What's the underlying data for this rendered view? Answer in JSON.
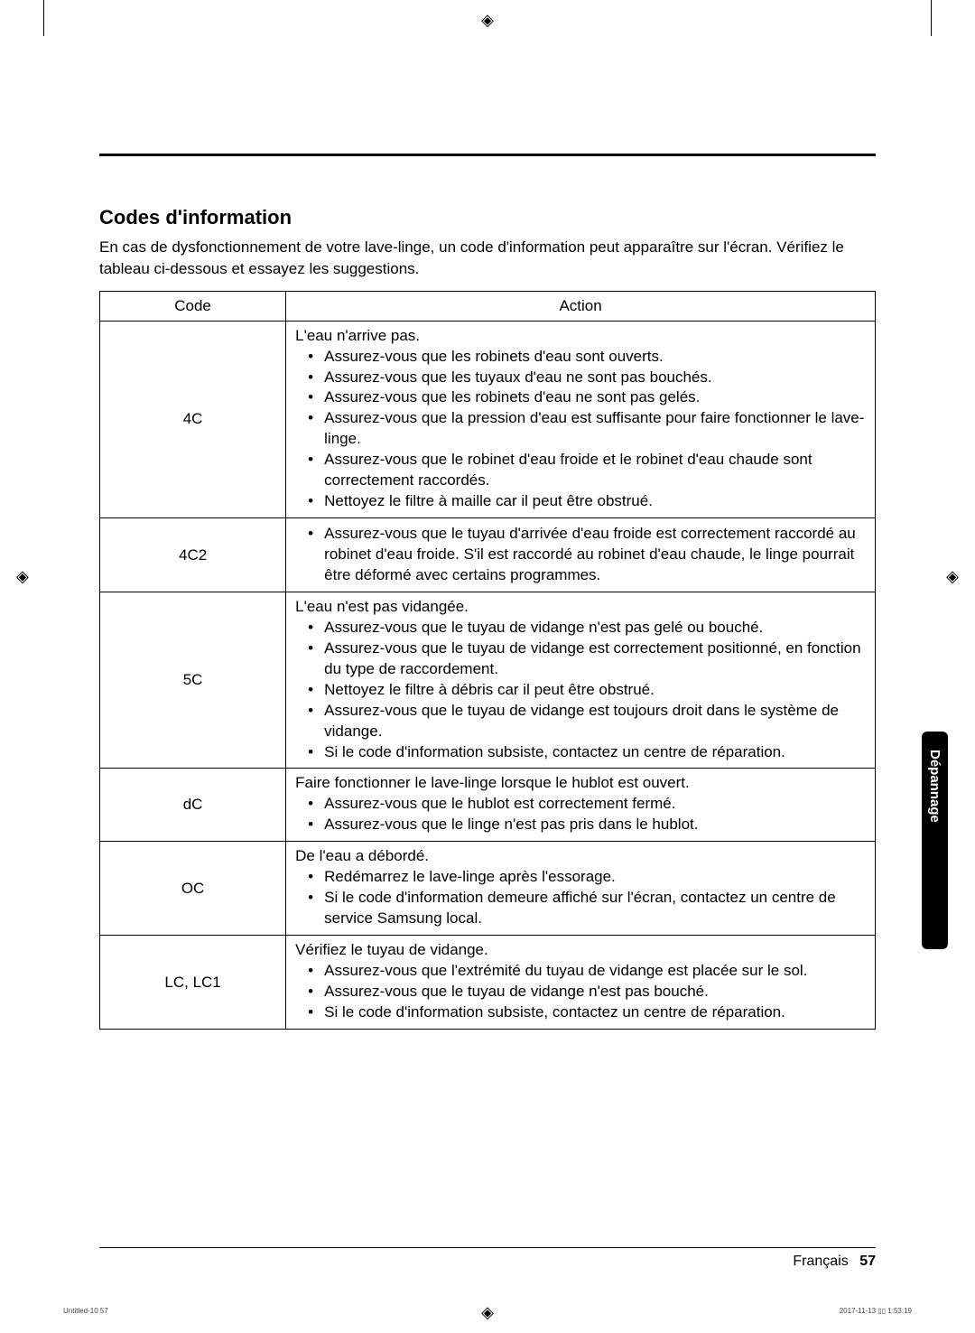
{
  "section_title": "Codes d'information",
  "intro": "En cas de dysfonctionnement de votre lave-linge, un code d'information peut apparaître sur l'écran. Vérifiez le tableau ci-dessous et essayez les suggestions.",
  "table": {
    "headers": {
      "code": "Code",
      "action": "Action"
    },
    "rows": [
      {
        "code": "4C",
        "lead": "L'eau n'arrive pas.",
        "bullets": [
          "Assurez-vous que les robinets d'eau sont ouverts.",
          "Assurez-vous que les tuyaux d'eau ne sont pas bouchés.",
          "Assurez-vous que les robinets d'eau ne sont pas gelés.",
          "Assurez-vous que la pression d'eau est suffisante pour faire fonctionner le lave-linge.",
          "Assurez-vous que le robinet d'eau froide et le robinet d'eau chaude sont correctement raccordés.",
          "Nettoyez le filtre à maille car il peut être obstrué."
        ]
      },
      {
        "code": "4C2",
        "lead": "",
        "bullets": [
          "Assurez-vous que le tuyau d'arrivée d'eau froide est correctement raccordé au robinet d'eau froide. S'il est raccordé au robinet d'eau chaude, le linge pourrait être déformé avec certains programmes."
        ]
      },
      {
        "code": "5C",
        "lead": "L'eau n'est pas vidangée.",
        "bullets": [
          "Assurez-vous que le tuyau de vidange n'est pas gelé ou bouché.",
          "Assurez-vous que le tuyau de vidange est correctement positionné, en fonction du type de raccordement.",
          "Nettoyez le filtre à débris car il peut être obstrué.",
          "Assurez-vous que le tuyau de vidange est toujours droit dans le système de vidange.",
          "Si le code d'information subsiste, contactez un centre de réparation."
        ]
      },
      {
        "code": "dC",
        "lead": "Faire fonctionner le lave-linge lorsque le hublot est ouvert.",
        "bullets": [
          "Assurez-vous que le hublot est correctement fermé.",
          "Assurez-vous que le linge n'est pas pris dans le hublot."
        ]
      },
      {
        "code": "OC",
        "lead": "De l'eau a débordé.",
        "bullets": [
          "Redémarrez le lave-linge après l'essorage.",
          "Si le code d'information demeure affiché sur l'écran, contactez un centre de service Samsung local."
        ]
      },
      {
        "code": "LC, LC1",
        "lead": "Vérifiez le tuyau de vidange.",
        "bullets": [
          "Assurez-vous que l'extrémité du tuyau de vidange est placée sur le sol.",
          "Assurez-vous que le tuyau de vidange n'est pas bouché.",
          "Si le code d'information subsiste, contactez un centre de réparation."
        ]
      }
    ]
  },
  "side_tab": "Dépannage",
  "footer": {
    "language": "Français",
    "page": "57"
  },
  "print": {
    "left": "Untitled-10   57",
    "right": "2017-11-13   ▯▯ 1:53:19"
  }
}
